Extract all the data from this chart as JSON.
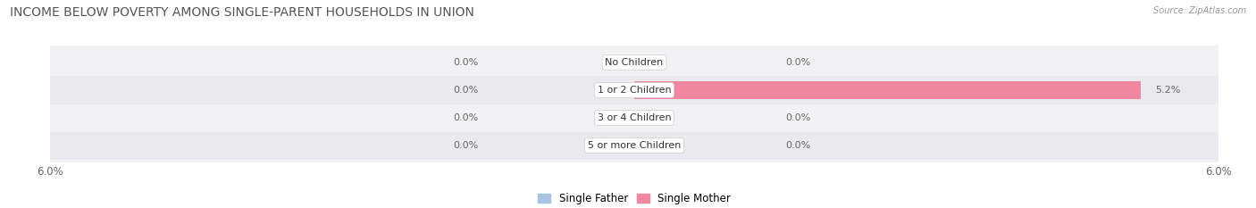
{
  "title": "INCOME BELOW POVERTY AMONG SINGLE-PARENT HOUSEHOLDS IN UNION",
  "source": "Source: ZipAtlas.com",
  "categories": [
    "No Children",
    "1 or 2 Children",
    "3 or 4 Children",
    "5 or more Children"
  ],
  "single_father": [
    0.0,
    0.0,
    0.0,
    0.0
  ],
  "single_mother": [
    0.0,
    5.2,
    0.0,
    0.0
  ],
  "xlim": 6.0,
  "father_color": "#a8c4e0",
  "mother_color": "#f287a0",
  "row_colors": [
    "#f2f2f5",
    "#e9e9ee"
  ],
  "title_fontsize": 10,
  "label_fontsize": 8,
  "tick_fontsize": 8.5,
  "legend_fontsize": 8.5,
  "value_color": "#666666",
  "cat_label_color": "#333333",
  "title_color": "#555555",
  "source_color": "#999999"
}
